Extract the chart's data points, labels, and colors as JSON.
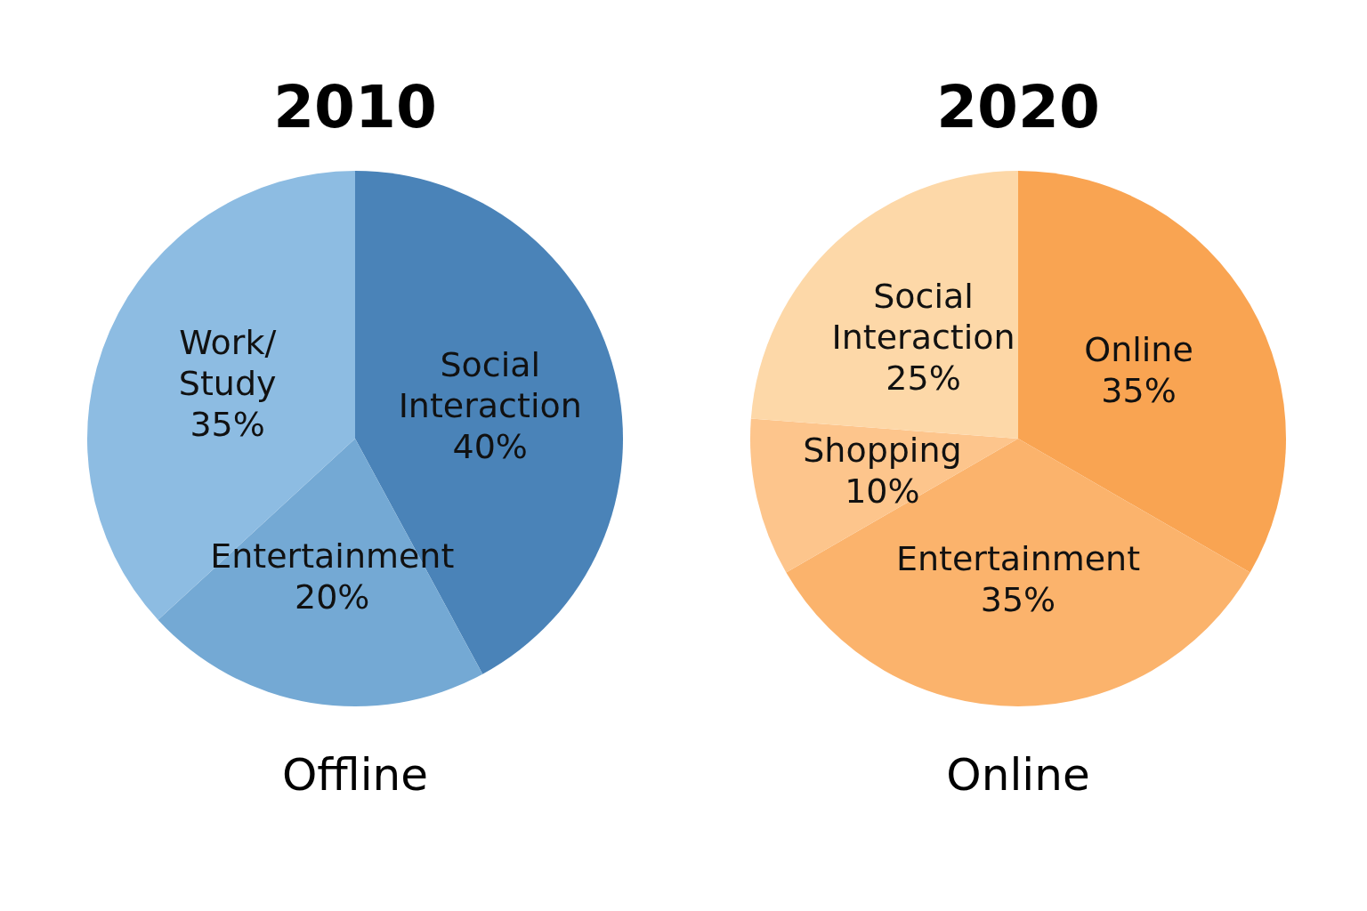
{
  "chart_data": [
    {
      "type": "pie",
      "title": "2010",
      "subtitle": "Offline",
      "categories": [
        "Social Interaction",
        "Entertainment",
        "Work/Study"
      ],
      "values": [
        40,
        20,
        35
      ],
      "colors": [
        "#4a83b8",
        "#74a9d4",
        "#8dbce2"
      ],
      "value_labels": [
        "40%",
        "20%",
        "35%"
      ]
    },
    {
      "type": "pie",
      "title": "2020",
      "subtitle": "Online",
      "categories": [
        "Online",
        "Entertainment",
        "Shopping",
        "Social Interaction"
      ],
      "values": [
        35,
        35,
        10,
        25
      ],
      "colors": [
        "#f9a452",
        "#fbb36c",
        "#fdc58c",
        "#fdd8a8"
      ],
      "value_labels": [
        "35%",
        "35%",
        "10%",
        "25%"
      ]
    }
  ]
}
